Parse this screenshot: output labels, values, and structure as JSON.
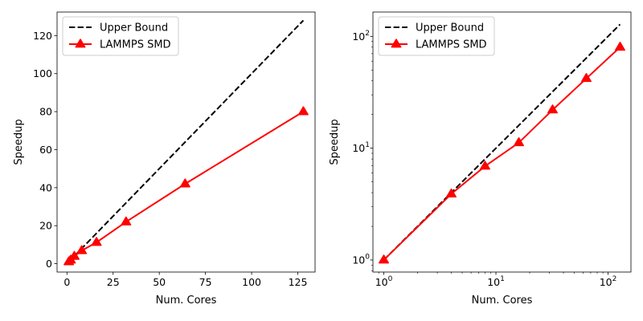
{
  "chart_data": [
    {
      "type": "line",
      "xlabel": "Num. Cores",
      "ylabel": "Speedup",
      "xscale": "linear",
      "yscale": "linear",
      "xlim": [
        -5.35,
        134.35
      ],
      "ylim": [
        -4.4,
        132.4
      ],
      "xticks": [
        0,
        25,
        50,
        75,
        100,
        125
      ],
      "xtick_labels": [
        "0",
        "25",
        "50",
        "75",
        "100",
        "125"
      ],
      "yticks": [
        0,
        20,
        40,
        60,
        80,
        100,
        120
      ],
      "ytick_labels": [
        "0",
        "20",
        "40",
        "60",
        "80",
        "100",
        "120"
      ],
      "legend": "top-left",
      "grid": false,
      "series": [
        {
          "name": "Upper Bound",
          "style": "dashed",
          "color": "#000000",
          "x": [
            1,
            2,
            4,
            8,
            16,
            32,
            64,
            128
          ],
          "y": [
            1,
            2,
            4,
            8,
            16,
            32,
            64,
            128
          ]
        },
        {
          "name": "LAMMPS SMD",
          "style": "solid",
          "marker": "triangle",
          "color": "#ff0000",
          "x": [
            1,
            2,
            4,
            8,
            16,
            32,
            64,
            128
          ],
          "y": [
            1,
            1.9,
            3.9,
            6.9,
            11.2,
            22,
            42,
            80
          ]
        }
      ]
    },
    {
      "type": "line",
      "xlabel": "Num. Cores",
      "ylabel": "Speedup",
      "xscale": "log",
      "yscale": "log",
      "xlim": [
        0.8,
        160
      ],
      "ylim": [
        0.78,
        165
      ],
      "xticks": [
        1,
        10,
        100
      ],
      "xtick_labels": [
        "10^0",
        "10^1",
        "10^2"
      ],
      "yticks": [
        1,
        10,
        100
      ],
      "ytick_labels": [
        "10^0",
        "10^1",
        "10^2"
      ],
      "legend": "top-left",
      "grid": false,
      "series": [
        {
          "name": "Upper Bound",
          "style": "dashed",
          "color": "#000000",
          "x": [
            1,
            2,
            4,
            8,
            16,
            32,
            64,
            128
          ],
          "y": [
            1,
            2,
            4,
            8,
            16,
            32,
            64,
            128
          ]
        },
        {
          "name": "LAMMPS SMD",
          "style": "solid",
          "marker": "triangle",
          "color": "#ff0000",
          "x": [
            1,
            4,
            8,
            16,
            32,
            64,
            128
          ],
          "y": [
            1,
            3.9,
            6.9,
            11.2,
            22,
            42,
            80
          ]
        }
      ]
    }
  ]
}
